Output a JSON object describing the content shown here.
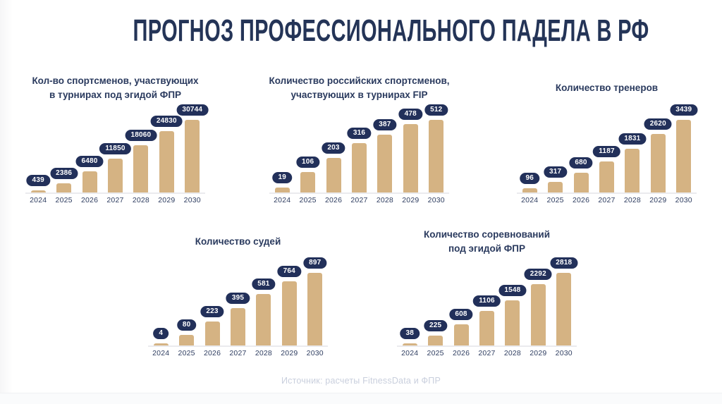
{
  "page_title": "ПРОГНОЗ ПРОФЕССИОНАЛЬНОГО ПАДЕЛА В РФ",
  "footer": {
    "source_label": "Источник: расчеты FitnessData и ФПР"
  },
  "colors": {
    "background": "#ffffff",
    "main_title": "#243457",
    "chart_title": "#2a3a5e",
    "bar": "#d5b383",
    "badge_bg": "#22305a",
    "badge_text": "#ffffff",
    "axis_label": "#2e3d60",
    "baseline": "#ebebee",
    "footer_text": "#c9cfdd"
  },
  "chart_data": [
    {
      "type": "bar",
      "id": "athletes-fpr",
      "title_lines": [
        "Кол-во спортсменов, участвующих",
        "в турнирах под эгидой ФПР"
      ],
      "categories": [
        "2024",
        "2025",
        "2026",
        "2027",
        "2028",
        "2029",
        "2030"
      ],
      "values": [
        439,
        2386,
        6480,
        11850,
        18060,
        24830,
        30744
      ],
      "xlabel": "",
      "ylabel": "",
      "legend": false,
      "grid": false
    },
    {
      "type": "bar",
      "id": "athletes-fip",
      "title_lines": [
        "Количество российских спортсменов,",
        "участвующих в турнирах FIP"
      ],
      "categories": [
        "2024",
        "2025",
        "2026",
        "2027",
        "2028",
        "2029",
        "2030"
      ],
      "values": [
        19,
        106,
        203,
        316,
        387,
        478,
        512
      ],
      "xlabel": "",
      "ylabel": "",
      "legend": false,
      "grid": false
    },
    {
      "type": "bar",
      "id": "coaches",
      "title_lines": [
        "Количество тренеров"
      ],
      "categories": [
        "2024",
        "2025",
        "2026",
        "2027",
        "2028",
        "2029",
        "2030"
      ],
      "values": [
        96,
        317,
        680,
        1187,
        1831,
        2620,
        3439
      ],
      "xlabel": "",
      "ylabel": "",
      "legend": false,
      "grid": false
    },
    {
      "type": "bar",
      "id": "referees",
      "title_lines": [
        "Количество судей"
      ],
      "categories": [
        "2024",
        "2025",
        "2026",
        "2027",
        "2028",
        "2029",
        "2030"
      ],
      "values": [
        4,
        80,
        223,
        395,
        581,
        764,
        897
      ],
      "xlabel": "",
      "ylabel": "",
      "legend": false,
      "grid": false
    },
    {
      "type": "bar",
      "id": "competitions",
      "title_lines": [
        "Количество соревнований",
        "под эгидой ФПР"
      ],
      "categories": [
        "2024",
        "2025",
        "2026",
        "2027",
        "2028",
        "2029",
        "2030"
      ],
      "values": [
        38,
        225,
        608,
        1106,
        1548,
        2292,
        2818
      ],
      "xlabel": "",
      "ylabel": "",
      "legend": false,
      "grid": false
    }
  ]
}
